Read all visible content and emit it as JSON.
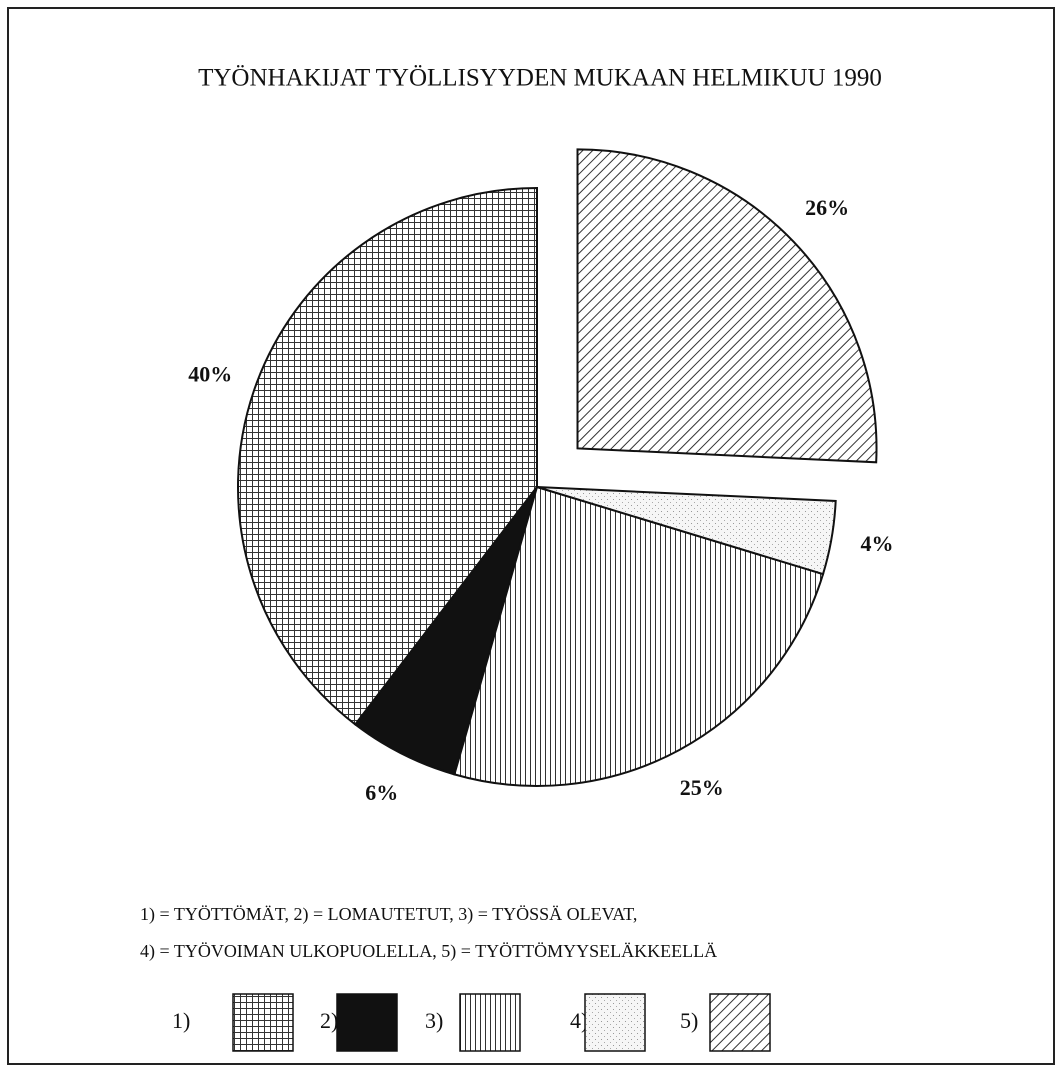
{
  "chart_data": {
    "type": "pie",
    "title": "TYÖNHAKIJAT TYÖLLISYYDEN MUKAAN HELMIKUU 1990",
    "categories": [
      "1)",
      "2)",
      "3)",
      "4)",
      "5)"
    ],
    "values": [
      40,
      6,
      25,
      4,
      26
    ],
    "value_labels": [
      "40%",
      "6%",
      "25%",
      "4%",
      "26%"
    ],
    "patterns": [
      "grid",
      "solid",
      "vertical",
      "dots",
      "diagonal"
    ],
    "explode": [
      false,
      false,
      false,
      false,
      true
    ],
    "direction": "counterclockwise",
    "legend_text": [
      "1) = TYÖTTÖMÄT, 2) = LOMAUTETUT, 3) = TYÖSSÄ OLEVAT,",
      "4) = TYÖVOIMAN ULKOPUOLELLA, 5) = TYÖTTÖMYYSELÄKKEELLÄ"
    ]
  }
}
